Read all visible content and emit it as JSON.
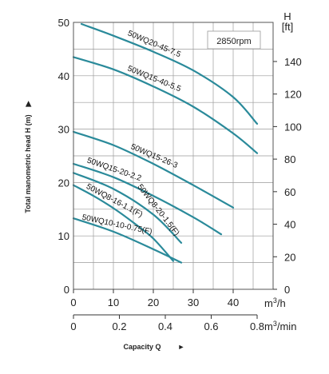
{
  "chart_data": {
    "type": "line",
    "ylabel": "Total manometric head H (m)",
    "xlabel": "Capacity Q",
    "x_unit_primary": "m³/h",
    "x_unit_secondary": "m³/min",
    "y_unit_right_symbol": "H",
    "y_unit_right": "[ft]",
    "annotation": "2850rpm",
    "xlim": [
      0,
      50
    ],
    "ylim": [
      0,
      50
    ],
    "grid": true,
    "x_ticks": [
      "0",
      "10",
      "20",
      "30",
      "40"
    ],
    "x_ticks_secondary": [
      "0",
      "0.2",
      "0.4",
      "0.6",
      "0.8"
    ],
    "y_ticks": [
      "0",
      "10",
      "20",
      "30",
      "40",
      "50"
    ],
    "y_ticks_right": [
      "0",
      "20",
      "40",
      "60",
      "80",
      "100",
      "120",
      "140"
    ],
    "line_color": "#2a8a9a",
    "series": [
      {
        "name": "50WQ20-45-7.5",
        "x": [
          2,
          10,
          20,
          30,
          40,
          46
        ],
        "y": [
          49.7,
          47.5,
          44.5,
          41.0,
          36.0,
          31.0
        ]
      },
      {
        "name": "50WQ15-40-5.5",
        "x": [
          0,
          10,
          20,
          30,
          40,
          46
        ],
        "y": [
          43.5,
          41.2,
          38.0,
          34.2,
          29.2,
          25.5
        ]
      },
      {
        "name": "50WQ15-26-3",
        "x": [
          0,
          10,
          20,
          30,
          40
        ],
        "y": [
          29.5,
          27.0,
          23.5,
          19.5,
          15.3
        ]
      },
      {
        "name": "50WQ15-20-2.2",
        "x": [
          0,
          10,
          20,
          30,
          37
        ],
        "y": [
          23.5,
          21.0,
          17.5,
          13.5,
          10.3
        ]
      },
      {
        "name": "50WQ8-20-1.5(F)",
        "x": [
          0,
          10,
          20,
          27
        ],
        "y": [
          21.8,
          18.8,
          14.0,
          8.7
        ]
      },
      {
        "name": "50WQ8-16-1.1(F)",
        "x": [
          0,
          5,
          10,
          15,
          20,
          25
        ],
        "y": [
          19.5,
          17.5,
          15.2,
          12.5,
          9.5,
          5.3
        ]
      },
      {
        "name": "50WQ10-10-0.75(F)",
        "x": [
          0,
          10,
          20,
          27
        ],
        "y": [
          13.3,
          10.8,
          7.5,
          5.0
        ]
      }
    ]
  }
}
